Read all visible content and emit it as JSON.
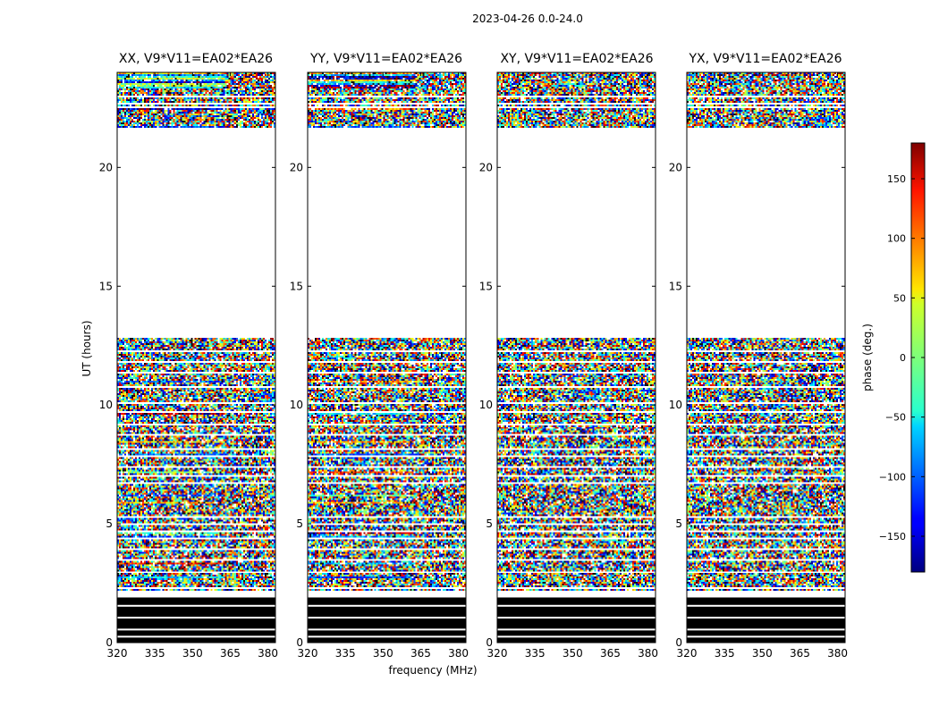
{
  "figure": {
    "suptitle": "2023-04-26 0.0-24.0",
    "xlabel": "frequency (MHz)",
    "ylabel": "UT (hours)",
    "colorbar_label": "phase (deg.)"
  },
  "chart_data": {
    "type": "heatmap",
    "title": "2023-04-26 0.0-24.0",
    "xlabel": "frequency (MHz)",
    "ylabel": "UT (hours)",
    "xlim": [
      320,
      383
    ],
    "ylim": [
      0,
      24
    ],
    "xticks": [
      320,
      335,
      350,
      365,
      380
    ],
    "yticks": [
      0,
      5,
      10,
      15,
      20
    ],
    "colorbar": {
      "label": "phase (deg.)",
      "range": [
        -180,
        180
      ],
      "ticks": [
        -150,
        -100,
        -50,
        0,
        50,
        100,
        150
      ],
      "colormap": "jet"
    },
    "panels": [
      {
        "title": "XX, V9*V11=EA02*EA26"
      },
      {
        "title": "YY, V9*V11=EA02*EA26"
      },
      {
        "title": "XY, V9*V11=EA02*EA26"
      },
      {
        "title": "YX, V9*V11=EA02*EA26"
      }
    ],
    "data_time_ranges_hours": [
      [
        0,
        2.0
      ],
      [
        2.2,
        12.8
      ],
      [
        21.7,
        24.0
      ]
    ],
    "flagged_black_range_hours": [
      0,
      1.9
    ],
    "empty_range_hours": [
      12.8,
      21.7
    ]
  }
}
